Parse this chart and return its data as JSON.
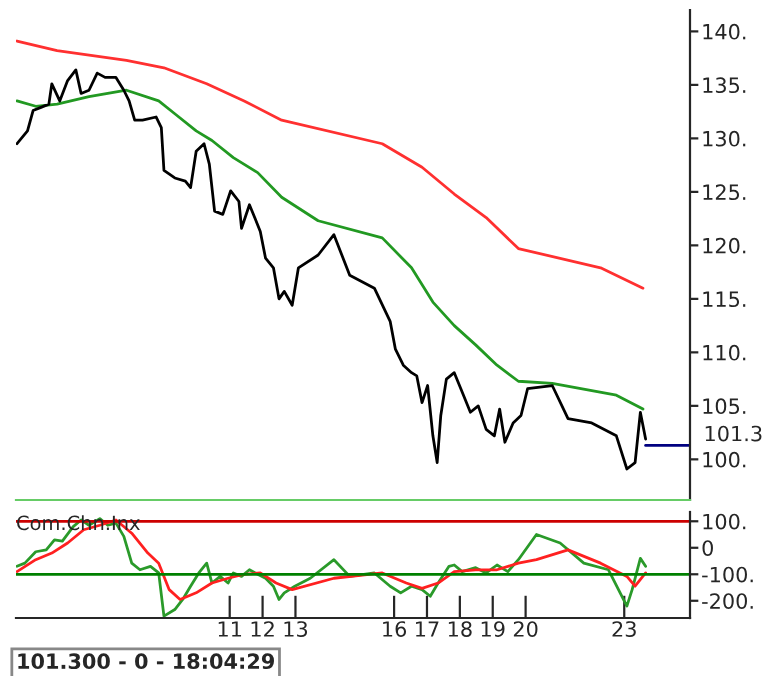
{
  "chart_data": [
    {
      "type": "line",
      "xlim": [
        4.5,
        25
      ],
      "ylim": [
        96.2,
        142
      ],
      "tick_labels": "y",
      "grid": false,
      "yticks": [
        {
          "value": 100,
          "label": "100."
        },
        {
          "value": 105,
          "label": "105."
        },
        {
          "value": 110,
          "label": "110."
        },
        {
          "value": 115,
          "label": "115."
        },
        {
          "value": 120,
          "label": "120."
        },
        {
          "value": 125,
          "label": "125."
        },
        {
          "value": 130,
          "label": "130."
        },
        {
          "value": 135,
          "label": "135."
        },
        {
          "value": 140,
          "label": "140."
        }
      ],
      "ref_lines": [
        {
          "axis": "y",
          "value": 101.3,
          "label": "101.3",
          "color": "#000080"
        }
      ],
      "series": [
        {
          "color": "#ff3030",
          "x": [
            4.53,
            5.75,
            7.86,
            9.0,
            10.3,
            11.44,
            12.58,
            15.64,
            16.85,
            17.83,
            18.8,
            19.78,
            22.28,
            23.57
          ],
          "values": [
            139.1,
            138.2,
            137.3,
            136.6,
            135.1,
            133.5,
            131.7,
            129.5,
            127.3,
            124.8,
            122.6,
            119.7,
            117.9,
            116.0
          ]
        },
        {
          "color": "#229922",
          "x": [
            4.53,
            5.1,
            5.75,
            6.72,
            7.86,
            8.84,
            9.33,
            9.98,
            10.46,
            11.11,
            11.85,
            12.58,
            13.69,
            15.64,
            16.53,
            17.18,
            17.83,
            18.48,
            19.13,
            19.78,
            20.81,
            22.76,
            23.57
          ],
          "values": [
            133.5,
            133.0,
            133.2,
            133.9,
            134.5,
            133.5,
            132.3,
            130.7,
            129.8,
            128.2,
            126.8,
            124.5,
            122.3,
            120.7,
            117.9,
            114.7,
            112.5,
            110.7,
            108.8,
            107.3,
            107.1,
            106.0,
            104.7
          ]
        },
        {
          "color": "#000000",
          "x": [
            4.53,
            4.85,
            5.02,
            5.26,
            5.5,
            5.59,
            5.83,
            6.07,
            6.32,
            6.48,
            6.72,
            6.97,
            7.21,
            7.54,
            7.78,
            7.94,
            8.11,
            8.35,
            8.76,
            8.92,
            9.0,
            9.33,
            9.65,
            9.81,
            9.98,
            10.22,
            10.38,
            10.54,
            10.79,
            11.03,
            11.28,
            11.36,
            11.6,
            11.76,
            11.93,
            12.09,
            12.33,
            12.5,
            12.66,
            12.9,
            13.09,
            13.69,
            14.17,
            14.65,
            15.4,
            15.88,
            16.04,
            16.28,
            16.53,
            16.69,
            16.85,
            17.02,
            17.18,
            17.31,
            17.42,
            17.59,
            17.83,
            18.07,
            18.32,
            18.56,
            18.8,
            19.05,
            19.21,
            19.37,
            19.62,
            19.86,
            20.06,
            20.81,
            21.29,
            22.01,
            22.76,
            23.08,
            23.33,
            23.49,
            23.65
          ],
          "values": [
            129.5,
            130.7,
            132.6,
            132.9,
            133.2,
            135.1,
            133.5,
            135.4,
            136.4,
            134.2,
            134.5,
            136.1,
            135.7,
            135.7,
            134.5,
            133.5,
            131.7,
            131.7,
            132.0,
            131.0,
            127.0,
            126.3,
            126.0,
            125.4,
            128.8,
            129.5,
            127.6,
            123.2,
            122.9,
            125.1,
            124.1,
            121.6,
            123.8,
            122.6,
            121.3,
            118.8,
            117.9,
            115.0,
            115.7,
            114.4,
            117.9,
            119.1,
            121.0,
            117.2,
            116.0,
            112.9,
            110.3,
            108.8,
            108.1,
            107.8,
            105.3,
            106.9,
            102.2,
            99.7,
            104.1,
            107.5,
            108.1,
            106.3,
            104.4,
            105.0,
            102.8,
            102.2,
            104.7,
            101.6,
            103.4,
            104.1,
            106.6,
            106.9,
            103.8,
            103.4,
            102.2,
            99.1,
            99.7,
            104.4,
            101.9
          ]
        }
      ]
    },
    {
      "type": "line",
      "title": "Com.Chn.Inx",
      "xlim": [
        4.5,
        25
      ],
      "ylim": [
        -265,
        135
      ],
      "grid": false,
      "xticks": [
        11,
        12,
        13,
        16,
        17,
        18,
        19,
        20,
        23
      ],
      "yticks": [
        {
          "value": 100,
          "label": "100."
        },
        0,
        {
          "value": -100,
          "label": "-100."
        },
        {
          "value": -200,
          "label": "-200."
        }
      ],
      "ref_lines": [
        {
          "axis": "y",
          "value": 100,
          "color": "#cc0000"
        },
        {
          "axis": "y",
          "value": -100,
          "color": "#008000"
        }
      ],
      "annotations": [
        "101.300 - 0 - 18:04:29"
      ],
      "series": [
        {
          "color": "#2a9a2a",
          "x": [
            4.53,
            4.77,
            5.1,
            5.42,
            5.67,
            5.91,
            6.24,
            6.48,
            6.72,
            7.05,
            7.29,
            7.54,
            7.78,
            8.02,
            8.27,
            8.59,
            8.84,
            9.0,
            9.33,
            9.57,
            9.81,
            10.06,
            10.3,
            10.46,
            10.71,
            10.95,
            11.11,
            11.36,
            11.6,
            11.85,
            12.09,
            12.33,
            12.5,
            12.66,
            12.98,
            13.45,
            14.17,
            14.65,
            15.4,
            15.88,
            16.2,
            16.53,
            16.85,
            17.1,
            17.34,
            17.67,
            17.83,
            18.07,
            18.48,
            18.8,
            19.13,
            19.46,
            19.78,
            20.33,
            21.05,
            21.77,
            22.52,
            23.08,
            23.24,
            23.49,
            23.65
          ],
          "values": [
            -70,
            -58,
            -15,
            -8,
            30,
            25,
            80,
            105,
            85,
            110,
            85,
            93,
            43,
            -58,
            -83,
            -70,
            -95,
            -258,
            -233,
            -195,
            -145,
            -95,
            -58,
            -133,
            -108,
            -133,
            -95,
            -108,
            -83,
            -100,
            -115,
            -145,
            -195,
            -170,
            -145,
            -115,
            -45,
            -108,
            -95,
            -145,
            -170,
            -145,
            -158,
            -183,
            -133,
            -70,
            -65,
            -90,
            -75,
            -95,
            -65,
            -90,
            -45,
            50,
            18,
            -58,
            -83,
            -220,
            -158,
            -40,
            -70
          ]
        },
        {
          "color": "#ff2020",
          "x": [
            4.53,
            5.1,
            5.59,
            6.07,
            6.56,
            7.05,
            7.54,
            8.02,
            8.51,
            8.84,
            9.16,
            9.49,
            9.98,
            10.46,
            10.95,
            11.44,
            11.93,
            12.41,
            12.9,
            14.17,
            15.64,
            16.37,
            16.85,
            17.34,
            17.83,
            18.48,
            19.13,
            19.78,
            20.33,
            21.29,
            22.28,
            23.08,
            23.33,
            23.65
          ],
          "values": [
            -90,
            -45,
            -20,
            18,
            68,
            85,
            105,
            55,
            -20,
            -58,
            -158,
            -195,
            -170,
            -133,
            -115,
            -100,
            -95,
            -133,
            -158,
            -115,
            -95,
            -133,
            -153,
            -133,
            -90,
            -83,
            -83,
            -58,
            -45,
            -8,
            -58,
            -108,
            -145,
            -95
          ]
        }
      ]
    }
  ]
}
